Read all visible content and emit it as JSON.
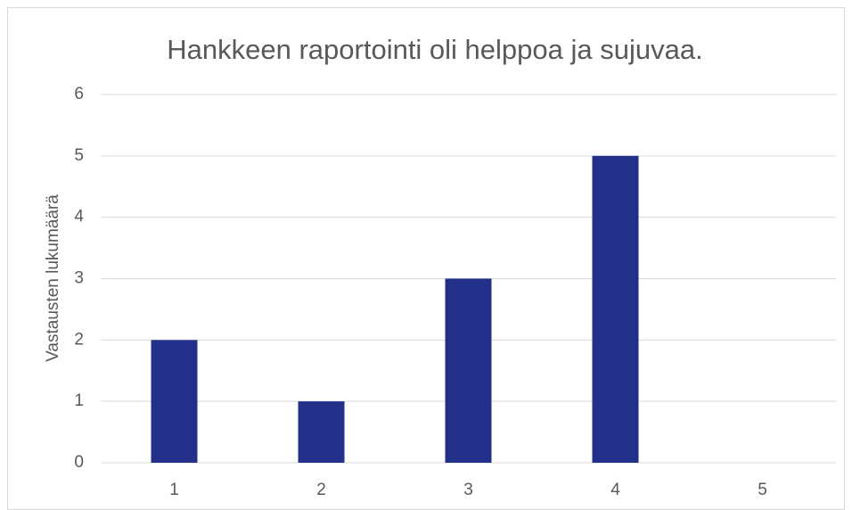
{
  "chart_data": {
    "type": "bar",
    "title": "Hankkeen raportointi oli helppoa ja sujuvaa.",
    "y_label": "Vastausten lukumäärä",
    "categories": [
      "1",
      "2",
      "3",
      "4",
      "5"
    ],
    "values": [
      2,
      1,
      3,
      5,
      0
    ],
    "color": "#233089",
    "ylim": [
      0,
      6
    ],
    "yticks": [
      0,
      1,
      2,
      3,
      4,
      5,
      6
    ],
    "grid": true
  }
}
